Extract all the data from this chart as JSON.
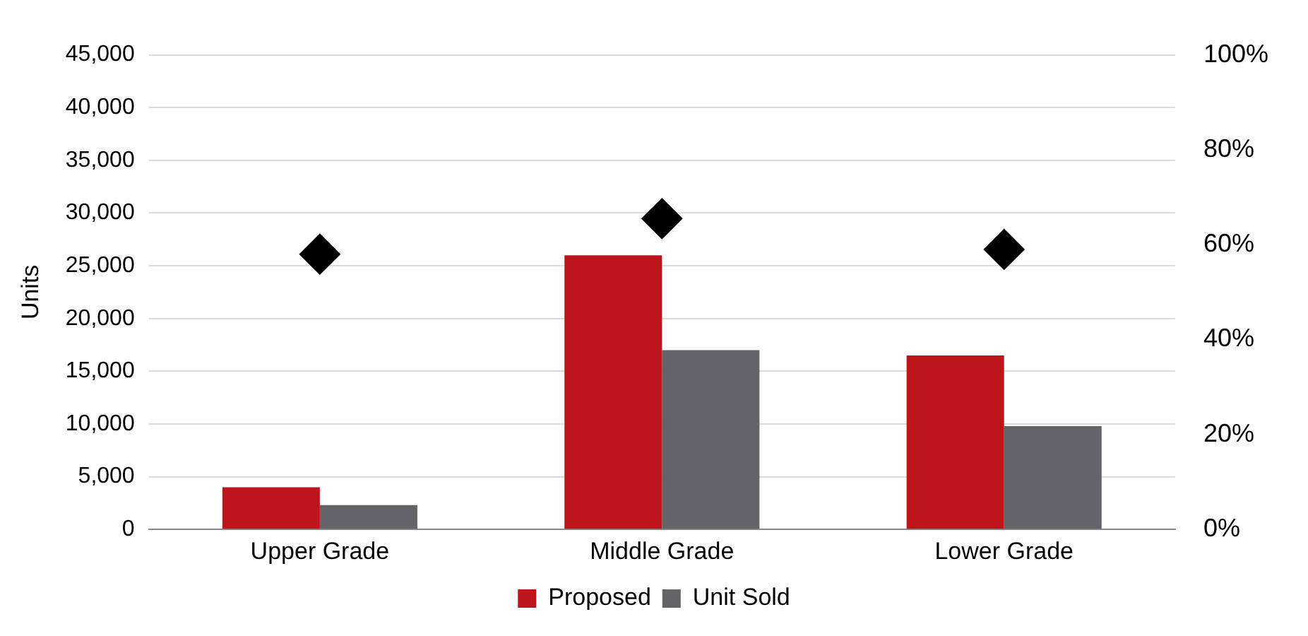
{
  "chart_data": {
    "type": "bar",
    "ylabel": "Units",
    "categories": [
      "Upper Grade",
      "Middle Grade",
      "Lower Grade"
    ],
    "series": [
      {
        "name": "Proposed",
        "color": "#be141c",
        "values": [
          4000,
          26000,
          16500
        ]
      },
      {
        "name": "Unit Sold",
        "color": "#636368",
        "values": [
          2300,
          17000,
          9800
        ]
      },
      {
        "type": "scatter",
        "axis": "y2",
        "color": "#000000",
        "marker": "diamond",
        "x": [
          "Upper Grade",
          "Middle Grade",
          "Lower Grade"
        ],
        "values": [
          58,
          65.5,
          59
        ]
      }
    ],
    "ylim": [
      0,
      45000
    ],
    "yticks": [
      {
        "value": 0,
        "label": "0"
      },
      {
        "value": 5000,
        "label": "5,000"
      },
      {
        "value": 10000,
        "label": "10,000"
      },
      {
        "value": 15000,
        "label": "15,000"
      },
      {
        "value": 20000,
        "label": "20,000"
      },
      {
        "value": 25000,
        "label": "25,000"
      },
      {
        "value": 30000,
        "label": "30,000"
      },
      {
        "value": 35000,
        "label": "35,000"
      },
      {
        "value": 40000,
        "label": "40,000"
      },
      {
        "value": 45000,
        "label": "45,000"
      }
    ],
    "y2lim": [
      0,
      100
    ],
    "y2ticks": [
      {
        "value": 0,
        "label": "0%"
      },
      {
        "value": 20,
        "label": "20%"
      },
      {
        "value": 40,
        "label": "40%"
      },
      {
        "value": 60,
        "label": "60%"
      },
      {
        "value": 80,
        "label": "80%"
      },
      {
        "value": 100,
        "label": "100%"
      }
    ],
    "grid": "y",
    "legend": "bottom"
  }
}
